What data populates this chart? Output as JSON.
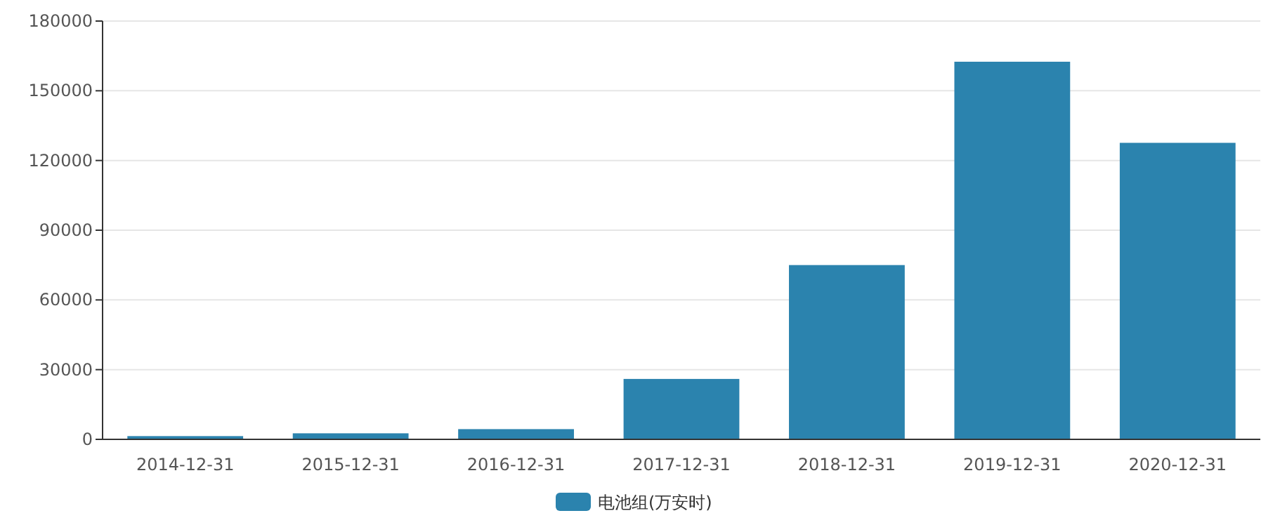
{
  "chart_data": {
    "type": "bar",
    "categories": [
      "2014-12-31",
      "2015-12-31",
      "2016-12-31",
      "2017-12-31",
      "2018-12-31",
      "2019-12-31",
      "2020-12-31"
    ],
    "series": [
      {
        "name": "电池组(万安时)",
        "color": "#2b83ae",
        "values": [
          1400,
          2600,
          4400,
          26000,
          75000,
          162500,
          127600
        ]
      }
    ],
    "ylim": [
      0,
      180000
    ],
    "yticks": [
      0,
      30000,
      60000,
      90000,
      120000,
      150000,
      180000
    ],
    "grid": "y",
    "legend": "bottom"
  }
}
